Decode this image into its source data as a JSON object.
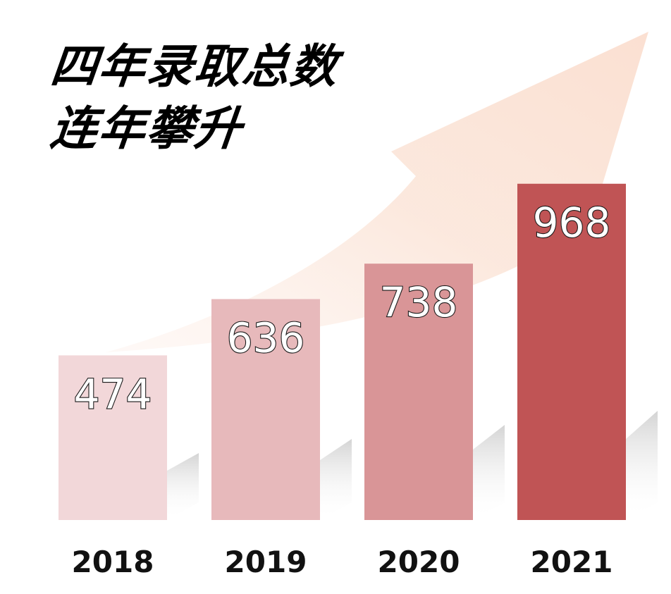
{
  "title": {
    "line1": "四年录取总数",
    "line2": "连年攀升"
  },
  "chart_data": {
    "type": "bar",
    "title": "四年录取总数 连年攀升",
    "categories": [
      "2018",
      "2019",
      "2020",
      "2021"
    ],
    "values": [
      474,
      636,
      738,
      968
    ],
    "bar_colors": [
      "#f2d7d9",
      "#e7b9bb",
      "#d99597",
      "#c05455"
    ],
    "arrow_color": "#fbe3d6",
    "shadow_color": "#d9d9d9",
    "grid": false,
    "legend": "none"
  }
}
